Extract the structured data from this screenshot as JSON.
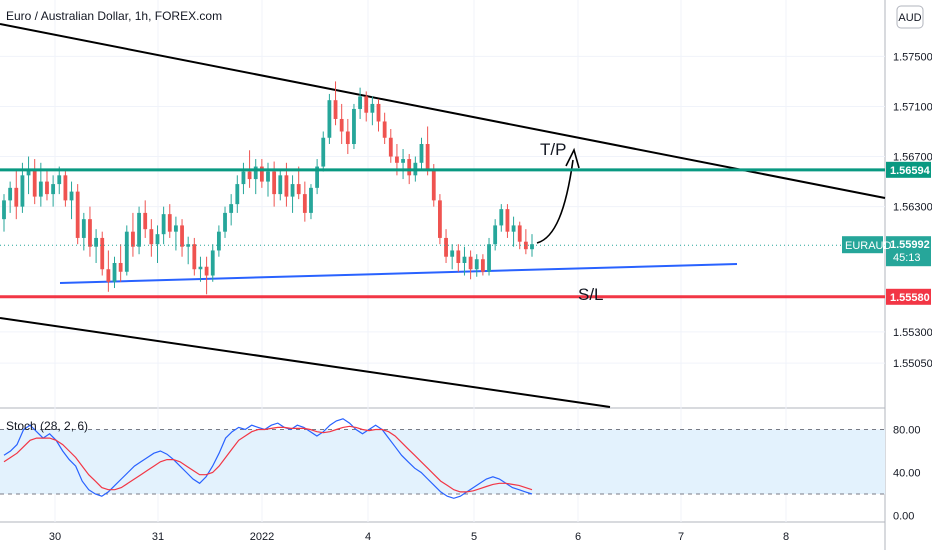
{
  "header": {
    "title": "Euro / Australian Dollar, 1h, FOREX.com",
    "currency_button": "AUD"
  },
  "colors": {
    "bull": "#26a69a",
    "bear": "#ef5350",
    "tp_line": "#089981",
    "sl_line": "#f23645",
    "support_line": "#2962ff",
    "trend_line": "#000000",
    "stoch_k": "#2962ff",
    "stoch_d": "#f23645",
    "stoch_band": "#e3f2fd"
  },
  "chart_data": [
    {
      "type": "candlestick",
      "symbol": "EURAUD",
      "x_ticks": [
        "30",
        "31",
        "2022",
        "4",
        "5",
        "6",
        "7",
        "8"
      ],
      "y_ticks": [
        "1.57500",
        "1.57100",
        "1.56700",
        "1.56300",
        "1.55300",
        "1.55050"
      ],
      "ylim": [
        1.547,
        1.5795
      ],
      "last_price": "1.55992",
      "countdown": "45:13",
      "levels": [
        {
          "label": "1.56594",
          "value": 1.56594,
          "role": "tp",
          "annotation": "T/P"
        },
        {
          "label": "1.55580",
          "value": 1.5558,
          "role": "sl",
          "annotation": "S/L"
        }
      ],
      "ohlc": [
        [
          1.562,
          1.564,
          1.561,
          1.5635
        ],
        [
          1.5635,
          1.565,
          1.5625,
          1.5645
        ],
        [
          1.5645,
          1.566,
          1.562,
          1.563
        ],
        [
          1.563,
          1.5665,
          1.5625,
          1.5655
        ],
        [
          1.5655,
          1.567,
          1.564,
          1.566
        ],
        [
          1.566,
          1.5668,
          1.5632,
          1.5638
        ],
        [
          1.5638,
          1.5665,
          1.563,
          1.565
        ],
        [
          1.565,
          1.566,
          1.5635,
          1.564
        ],
        [
          1.564,
          1.5655,
          1.563,
          1.5648
        ],
        [
          1.5648,
          1.5662,
          1.564,
          1.5655
        ],
        [
          1.5655,
          1.566,
          1.563,
          1.5635
        ],
        [
          1.5635,
          1.565,
          1.562,
          1.5642
        ],
        [
          1.5642,
          1.5648,
          1.56,
          1.5605
        ],
        [
          1.5605,
          1.5625,
          1.5595,
          1.562
        ],
        [
          1.562,
          1.563,
          1.559,
          1.5598
        ],
        [
          1.5598,
          1.5612,
          1.5585,
          1.5605
        ],
        [
          1.5605,
          1.561,
          1.5575,
          1.558
        ],
        [
          1.558,
          1.5595,
          1.5562,
          1.557
        ],
        [
          1.557,
          1.559,
          1.5565,
          1.5585
        ],
        [
          1.5585,
          1.56,
          1.557,
          1.5578
        ],
        [
          1.5578,
          1.5615,
          1.5575,
          1.561
        ],
        [
          1.561,
          1.5625,
          1.559,
          1.5598
        ],
        [
          1.5598,
          1.563,
          1.5592,
          1.5625
        ],
        [
          1.5625,
          1.5635,
          1.5605,
          1.5612
        ],
        [
          1.5612,
          1.562,
          1.559,
          1.56
        ],
        [
          1.56,
          1.5615,
          1.5585,
          1.5608
        ],
        [
          1.5608,
          1.563,
          1.56,
          1.5624
        ],
        [
          1.5624,
          1.5632,
          1.5605,
          1.561
        ],
        [
          1.561,
          1.5622,
          1.5595,
          1.5615
        ],
        [
          1.5615,
          1.562,
          1.559,
          1.5598
        ],
        [
          1.5598,
          1.5606,
          1.5584,
          1.56
        ],
        [
          1.56,
          1.5605,
          1.5575,
          1.558
        ],
        [
          1.558,
          1.559,
          1.557,
          1.5582
        ],
        [
          1.5582,
          1.559,
          1.556,
          1.5575
        ],
        [
          1.5575,
          1.56,
          1.557,
          1.5595
        ],
        [
          1.5595,
          1.5615,
          1.559,
          1.561
        ],
        [
          1.561,
          1.563,
          1.5605,
          1.5625
        ],
        [
          1.5625,
          1.564,
          1.5615,
          1.5632
        ],
        [
          1.5632,
          1.5655,
          1.5625,
          1.5648
        ],
        [
          1.5648,
          1.5665,
          1.564,
          1.5658
        ],
        [
          1.5658,
          1.5675,
          1.5645,
          1.5652
        ],
        [
          1.5652,
          1.5668,
          1.564,
          1.5662
        ],
        [
          1.5662,
          1.5668,
          1.5645,
          1.565
        ],
        [
          1.565,
          1.5665,
          1.5638,
          1.5658
        ],
        [
          1.5658,
          1.5666,
          1.563,
          1.564
        ],
        [
          1.564,
          1.566,
          1.5635,
          1.5655
        ],
        [
          1.5655,
          1.5665,
          1.563,
          1.5638
        ],
        [
          1.5638,
          1.5655,
          1.5625,
          1.5648
        ],
        [
          1.5648,
          1.5662,
          1.5636,
          1.564
        ],
        [
          1.564,
          1.565,
          1.5618,
          1.5625
        ],
        [
          1.5625,
          1.5648,
          1.562,
          1.5645
        ],
        [
          1.5645,
          1.5668,
          1.564,
          1.5662
        ],
        [
          1.5662,
          1.569,
          1.5658,
          1.5685
        ],
        [
          1.5685,
          1.572,
          1.568,
          1.5715
        ],
        [
          1.5715,
          1.573,
          1.5695,
          1.57
        ],
        [
          1.57,
          1.5712,
          1.568,
          1.569
        ],
        [
          1.569,
          1.57,
          1.5672,
          1.568
        ],
        [
          1.568,
          1.5712,
          1.5676,
          1.5708
        ],
        [
          1.5708,
          1.5725,
          1.57,
          1.5718
        ],
        [
          1.5718,
          1.5722,
          1.5698,
          1.5705
        ],
        [
          1.5705,
          1.5718,
          1.5695,
          1.5712
        ],
        [
          1.5712,
          1.5716,
          1.569,
          1.5698
        ],
        [
          1.5698,
          1.5705,
          1.568,
          1.5685
        ],
        [
          1.5685,
          1.5692,
          1.5665,
          1.567
        ],
        [
          1.567,
          1.568,
          1.5655,
          1.5665
        ],
        [
          1.5665,
          1.5676,
          1.5652,
          1.5668
        ],
        [
          1.5668,
          1.5672,
          1.5648,
          1.5655
        ],
        [
          1.5655,
          1.567,
          1.565,
          1.5665
        ],
        [
          1.5665,
          1.5685,
          1.566,
          1.568
        ],
        [
          1.568,
          1.5694,
          1.5655,
          1.566
        ],
        [
          1.566,
          1.5664,
          1.563,
          1.5635
        ],
        [
          1.5635,
          1.564,
          1.56,
          1.5605
        ],
        [
          1.5605,
          1.5612,
          1.5585,
          1.559
        ],
        [
          1.559,
          1.56,
          1.558,
          1.5595
        ],
        [
          1.5595,
          1.56,
          1.5578,
          1.5585
        ],
        [
          1.5585,
          1.5598,
          1.5575,
          1.559
        ],
        [
          1.559,
          1.5595,
          1.5572,
          1.558
        ],
        [
          1.558,
          1.5592,
          1.5574,
          1.5588
        ],
        [
          1.5588,
          1.5592,
          1.5575,
          1.5578
        ],
        [
          1.5578,
          1.5605,
          1.5575,
          1.56
        ],
        [
          1.56,
          1.562,
          1.5595,
          1.5615
        ],
        [
          1.5615,
          1.5632,
          1.561,
          1.5628
        ],
        [
          1.5628,
          1.5632,
          1.5605,
          1.561
        ],
        [
          1.561,
          1.5622,
          1.5598,
          1.5615
        ],
        [
          1.5615,
          1.5618,
          1.5596,
          1.5602
        ],
        [
          1.5602,
          1.5612,
          1.5592,
          1.5596
        ],
        [
          1.5596,
          1.5608,
          1.559,
          1.56
        ]
      ]
    },
    {
      "type": "line",
      "title": "Stoch (28, 2, 6)",
      "y_ticks": [
        "80.00",
        "40.00",
        "0.00"
      ],
      "ylim": [
        -6,
        100
      ],
      "bands": [
        80,
        20
      ],
      "series": [
        {
          "values": [
            56,
            60,
            66,
            80,
            84,
            78,
            72,
            76,
            70,
            60,
            52,
            46,
            32,
            24,
            20,
            18,
            22,
            28,
            34,
            40,
            46,
            50,
            54,
            58,
            60,
            57,
            52,
            46,
            40,
            34,
            30,
            36,
            46,
            58,
            72,
            78,
            82,
            80,
            84,
            82,
            80,
            84,
            86,
            82,
            80,
            84,
            82,
            78,
            74,
            78,
            84,
            88,
            90,
            86,
            80,
            76,
            80,
            84,
            80,
            72,
            64,
            56,
            50,
            44,
            40,
            34,
            28,
            22,
            18,
            16,
            18,
            22,
            26,
            30,
            34,
            36,
            34,
            30,
            26,
            24,
            22,
            20
          ]
        },
        {
          "values": [
            50,
            54,
            58,
            64,
            70,
            72,
            72,
            72,
            70,
            66,
            60,
            54,
            46,
            38,
            32,
            26,
            24,
            24,
            26,
            30,
            34,
            38,
            42,
            46,
            50,
            52,
            52,
            50,
            46,
            42,
            38,
            38,
            40,
            46,
            54,
            62,
            70,
            74,
            78,
            80,
            80,
            81,
            82,
            82,
            81,
            81,
            81,
            80,
            78,
            77,
            78,
            80,
            82,
            83,
            82,
            80,
            79,
            80,
            80,
            78,
            74,
            68,
            62,
            56,
            50,
            44,
            38,
            32,
            28,
            24,
            22,
            22,
            23,
            25,
            27,
            29,
            30,
            30,
            29,
            28,
            26,
            24
          ]
        }
      ]
    }
  ]
}
